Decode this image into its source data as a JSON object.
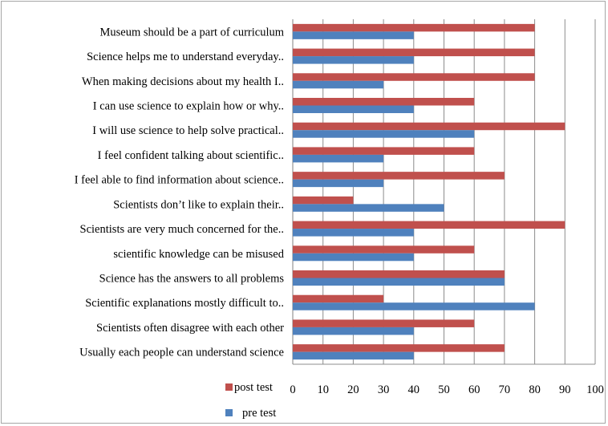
{
  "chart_data": {
    "type": "bar",
    "orientation": "horizontal",
    "categories": [
      "Museum should be a part of curriculum",
      "Science helps me to understand everyday..",
      "When making decisions about my health I..",
      "I can use science to explain how or why..",
      "I will  use science to help solve practical..",
      "I feel confident talking about scientific..",
      "I feel able to find information about science..",
      "Scientists don’t like to explain their..",
      "Scientists are very much concerned for the..",
      "scientific knowledge  can be misused",
      "Science has the answers to all problems",
      "Scientific explanations mostly difficult to..",
      "Scientists often disagree with each other",
      "Usually each people can understand science"
    ],
    "series": [
      {
        "name": "post test",
        "color": "#c0504d",
        "values": [
          80,
          80,
          80,
          60,
          90,
          60,
          70,
          20,
          90,
          60,
          70,
          30,
          60,
          70
        ]
      },
      {
        "name": "pre test",
        "color": "#4f81bd",
        "values": [
          40,
          40,
          30,
          40,
          60,
          30,
          30,
          50,
          40,
          40,
          70,
          80,
          40,
          40
        ]
      }
    ],
    "xlim": [
      0,
      100
    ],
    "xticks": [
      "0",
      "10",
      "20",
      "30",
      "40",
      "50",
      "60",
      "70",
      "80",
      "90",
      "100"
    ],
    "grid": "vertical",
    "legend": "bottom-left"
  }
}
